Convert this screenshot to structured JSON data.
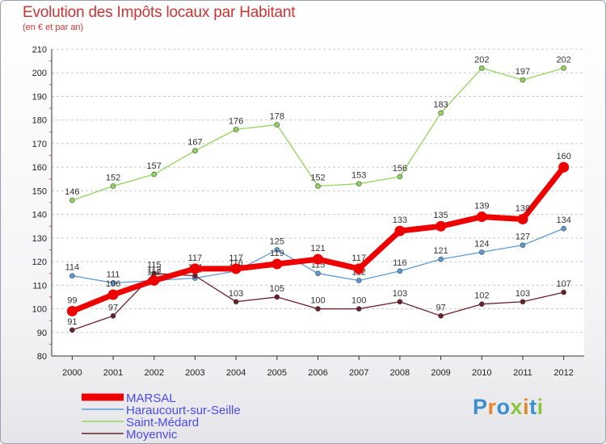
{
  "chart_data": {
    "type": "line",
    "title": "Evolution des Impôts locaux par Habitant",
    "subtitle": "(en € et par an)",
    "x": [
      "2000",
      "2001",
      "2002",
      "2003",
      "2004",
      "2005",
      "2006",
      "2007",
      "2008",
      "2009",
      "2010",
      "2011",
      "2012"
    ],
    "yticks": [
      80,
      90,
      100,
      110,
      120,
      130,
      140,
      150,
      160,
      170,
      180,
      190,
      200,
      210
    ],
    "ylim": [
      80,
      210
    ],
    "grid": "horizontal dashed",
    "legend_position": "bottom-left",
    "series": [
      {
        "name": "Haraucourt-sur-Seille",
        "color": "#5b9bd5",
        "values": [
          114,
          111,
          112,
          113,
          116,
          125,
          115,
          112,
          116,
          121,
          124,
          127,
          134
        ]
      },
      {
        "name": "Saint-Médard",
        "color": "#8fd65a",
        "values": [
          146,
          152,
          157,
          167,
          176,
          178,
          152,
          153,
          156,
          183,
          202,
          197,
          202
        ]
      },
      {
        "name": "Moyenvic",
        "color": "#6b1f2a",
        "values": [
          91,
          97,
          115,
          114,
          103,
          105,
          100,
          100,
          103,
          97,
          102,
          103,
          107
        ]
      },
      {
        "name": "MARSAL",
        "color": "#ee0000",
        "values": [
          99,
          106,
          112,
          117,
          117,
          119,
          121,
          117,
          133,
          135,
          139,
          138,
          160
        ]
      }
    ]
  },
  "logo": {
    "text": "Proxiti",
    "letter_colors": [
      "#3a8fd0",
      "#e8862a",
      "#3a8fd0",
      "#8cc63f",
      "#e8862a",
      "#3a8fd0",
      "#8cc63f"
    ]
  }
}
